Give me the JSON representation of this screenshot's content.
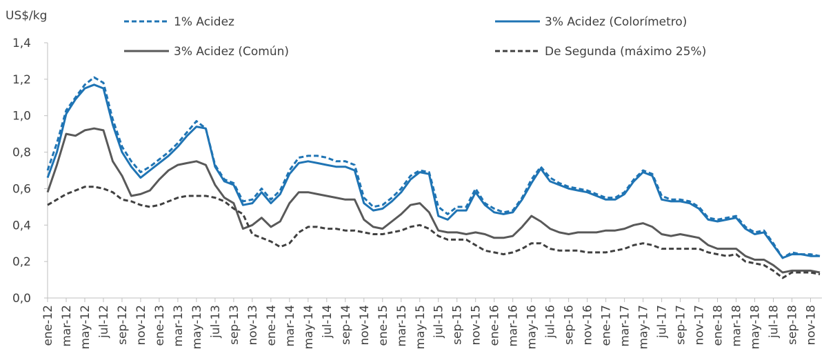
{
  "chart_data": {
    "type": "line",
    "ylabel": "US$/kg",
    "legend": "top",
    "categories": [
      "ene-12",
      null,
      "mar-12",
      null,
      "may-12",
      null,
      "jul-12",
      null,
      "sep-12",
      null,
      "nov-12",
      null,
      "ene-13",
      null,
      "mar-13",
      null,
      "may-13",
      null,
      "jul-13",
      null,
      "sep-13",
      null,
      "nov-13",
      null,
      "ene-14",
      null,
      "mar-14",
      null,
      "may-14",
      null,
      "jul-14",
      null,
      "sep-14",
      null,
      "nov-14",
      null,
      "ene-15",
      null,
      "mar-15",
      null,
      "may-15",
      null,
      "jul-15",
      null,
      "sep-15",
      null,
      "nov-15",
      null,
      "ene-16",
      null,
      "mar-16",
      null,
      "may-16",
      null,
      "jul-16",
      null,
      "sep-16",
      null,
      "nov-16",
      null,
      "ene-17",
      null,
      "mar-17",
      null,
      "may-17",
      null,
      "jul-17",
      null,
      "sep-17",
      null,
      "nov-17",
      null,
      "ene-18",
      null,
      "mar-18",
      null,
      "may-18",
      null,
      "jul-18",
      null,
      "sep-18",
      null,
      "nov-18",
      null
    ],
    "ylim": [
      0,
      1.4
    ],
    "yticks": [
      {
        "value": 0,
        "label": "0,0"
      },
      {
        "value": 0.2,
        "label": "0,2"
      },
      {
        "value": 0.4,
        "label": "0,4"
      },
      {
        "value": 0.6,
        "label": "0,6"
      },
      {
        "value": 0.8,
        "label": "0,8"
      },
      {
        "value": 1.0,
        "label": "1,0"
      },
      {
        "value": 1.2,
        "label": "1,2"
      },
      {
        "value": 1.4,
        "label": "1,4"
      }
    ],
    "series": [
      {
        "name": "1% Acidez",
        "color": "#1f74b4",
        "line_style": "dashed",
        "values": [
          0.7,
          0.85,
          1.03,
          1.1,
          1.17,
          1.21,
          1.18,
          0.98,
          0.83,
          0.75,
          0.69,
          0.72,
          0.76,
          0.8,
          0.85,
          0.91,
          0.97,
          0.93,
          0.73,
          0.65,
          0.63,
          0.53,
          0.54,
          0.6,
          0.54,
          0.59,
          0.7,
          0.77,
          0.78,
          0.78,
          0.77,
          0.75,
          0.75,
          0.73,
          0.55,
          0.5,
          0.51,
          0.55,
          0.6,
          0.67,
          0.7,
          0.69,
          0.5,
          0.46,
          0.5,
          0.5,
          0.6,
          0.52,
          0.49,
          0.47,
          0.48,
          0.55,
          0.65,
          0.72,
          0.66,
          0.63,
          0.61,
          0.6,
          0.59,
          0.57,
          0.55,
          0.55,
          0.58,
          0.65,
          0.7,
          0.68,
          0.56,
          0.54,
          0.54,
          0.53,
          0.5,
          0.44,
          0.43,
          0.44,
          0.45,
          0.39,
          0.36,
          0.37,
          0.3,
          0.22,
          0.25,
          0.24,
          0.24,
          0.23
        ]
      },
      {
        "name": "3% Acidez (Colorímetro)",
        "color": "#1f74b4",
        "line_style": "solid",
        "values": [
          0.66,
          0.8,
          1.01,
          1.09,
          1.15,
          1.17,
          1.15,
          0.95,
          0.8,
          0.72,
          0.66,
          0.7,
          0.74,
          0.78,
          0.83,
          0.89,
          0.94,
          0.93,
          0.72,
          0.64,
          0.62,
          0.51,
          0.52,
          0.58,
          0.52,
          0.57,
          0.68,
          0.74,
          0.75,
          0.74,
          0.73,
          0.72,
          0.72,
          0.7,
          0.52,
          0.48,
          0.49,
          0.53,
          0.58,
          0.65,
          0.69,
          0.68,
          0.45,
          0.43,
          0.48,
          0.48,
          0.58,
          0.51,
          0.47,
          0.46,
          0.47,
          0.54,
          0.63,
          0.71,
          0.64,
          0.62,
          0.6,
          0.59,
          0.58,
          0.56,
          0.54,
          0.54,
          0.57,
          0.64,
          0.69,
          0.67,
          0.54,
          0.53,
          0.53,
          0.52,
          0.49,
          0.43,
          0.42,
          0.43,
          0.44,
          0.38,
          0.35,
          0.36,
          0.29,
          0.22,
          0.24,
          0.24,
          0.23,
          0.23
        ]
      },
      {
        "name": "3% Acidez (Común)",
        "color": "#595959",
        "line_style": "solid",
        "values": [
          0.58,
          0.73,
          0.9,
          0.89,
          0.92,
          0.93,
          0.92,
          0.75,
          0.67,
          0.56,
          0.57,
          0.59,
          0.65,
          0.7,
          0.73,
          0.74,
          0.75,
          0.73,
          0.62,
          0.55,
          0.52,
          0.38,
          0.4,
          0.44,
          0.39,
          0.42,
          0.52,
          0.58,
          0.58,
          0.57,
          0.56,
          0.55,
          0.54,
          0.54,
          0.43,
          0.39,
          0.38,
          0.42,
          0.46,
          0.51,
          0.52,
          0.47,
          0.37,
          0.36,
          0.36,
          0.35,
          0.36,
          0.35,
          0.33,
          0.33,
          0.34,
          0.39,
          0.45,
          0.42,
          0.38,
          0.36,
          0.35,
          0.36,
          0.36,
          0.36,
          0.37,
          0.37,
          0.38,
          0.4,
          0.41,
          0.39,
          0.35,
          0.34,
          0.35,
          0.34,
          0.33,
          0.29,
          0.27,
          0.27,
          0.27,
          0.23,
          0.21,
          0.21,
          0.18,
          0.14,
          0.15,
          0.15,
          0.15,
          0.14
        ]
      },
      {
        "name": "De Segunda (máximo 25%)",
        "color": "#404040",
        "line_style": "dashed",
        "values": [
          0.51,
          0.54,
          0.57,
          0.59,
          0.61,
          0.61,
          0.6,
          0.58,
          0.54,
          0.53,
          0.51,
          0.5,
          0.51,
          0.53,
          0.55,
          0.56,
          0.56,
          0.56,
          0.55,
          0.53,
          0.49,
          0.46,
          0.35,
          0.33,
          0.31,
          0.28,
          0.3,
          0.36,
          0.39,
          0.39,
          0.38,
          0.38,
          0.37,
          0.37,
          0.36,
          0.35,
          0.35,
          0.36,
          0.37,
          0.39,
          0.4,
          0.38,
          0.34,
          0.32,
          0.32,
          0.32,
          0.29,
          0.26,
          0.25,
          0.24,
          0.25,
          0.27,
          0.3,
          0.3,
          0.27,
          0.26,
          0.26,
          0.26,
          0.25,
          0.25,
          0.25,
          0.26,
          0.27,
          0.29,
          0.3,
          0.29,
          0.27,
          0.27,
          0.27,
          0.27,
          0.27,
          0.25,
          0.24,
          0.23,
          0.24,
          0.2,
          0.19,
          0.18,
          0.15,
          0.11,
          0.14,
          0.14,
          0.14,
          0.13
        ]
      }
    ]
  }
}
